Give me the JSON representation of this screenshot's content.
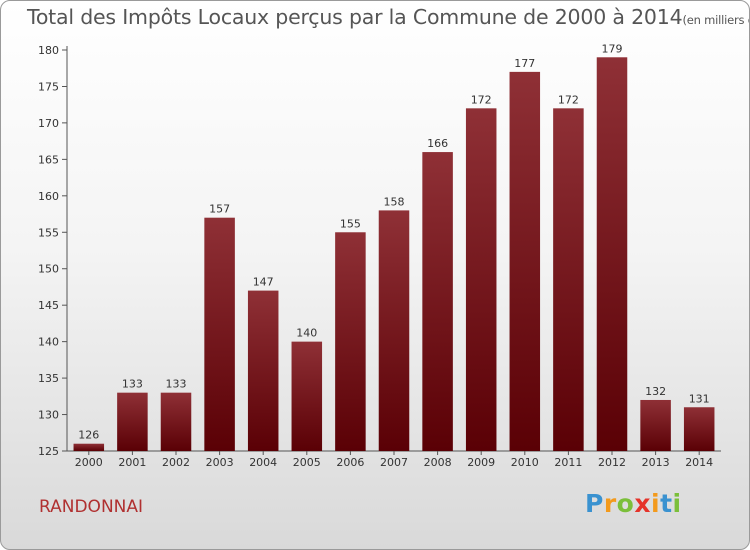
{
  "chart_data": {
    "type": "bar",
    "title": "Total des Impôts Locaux perçus par la Commune de 2000 à 2014",
    "unit": "(en milliers d'€)",
    "categories": [
      "2000",
      "2001",
      "2002",
      "2003",
      "2004",
      "2005",
      "2006",
      "2007",
      "2008",
      "2009",
      "2010",
      "2011",
      "2012",
      "2013",
      "2014"
    ],
    "values": [
      126,
      133,
      133,
      157,
      147,
      140,
      155,
      158,
      166,
      172,
      177,
      172,
      179,
      132,
      131
    ],
    "ylim": [
      125,
      180
    ],
    "yticks": [
      125,
      130,
      135,
      140,
      145,
      150,
      155,
      160,
      165,
      170,
      175,
      180
    ],
    "xlabel": "",
    "ylabel": "",
    "grid": false,
    "colors": {
      "bar_top": "#8f3036",
      "bar_bottom": "#5a0005",
      "axis": "#555555",
      "text": "#333333",
      "title": "#555555"
    }
  },
  "commune": {
    "name": "RANDONNAI",
    "color": "#b03030"
  },
  "brand": {
    "letters": [
      "P",
      "r",
      "o",
      "x",
      "i",
      "t",
      "i"
    ],
    "colors": [
      "#3a92d0",
      "#f39a1c",
      "#7bbf3a",
      "#e5332a",
      "#f39a1c",
      "#3a92d0",
      "#7bbf3a"
    ]
  }
}
